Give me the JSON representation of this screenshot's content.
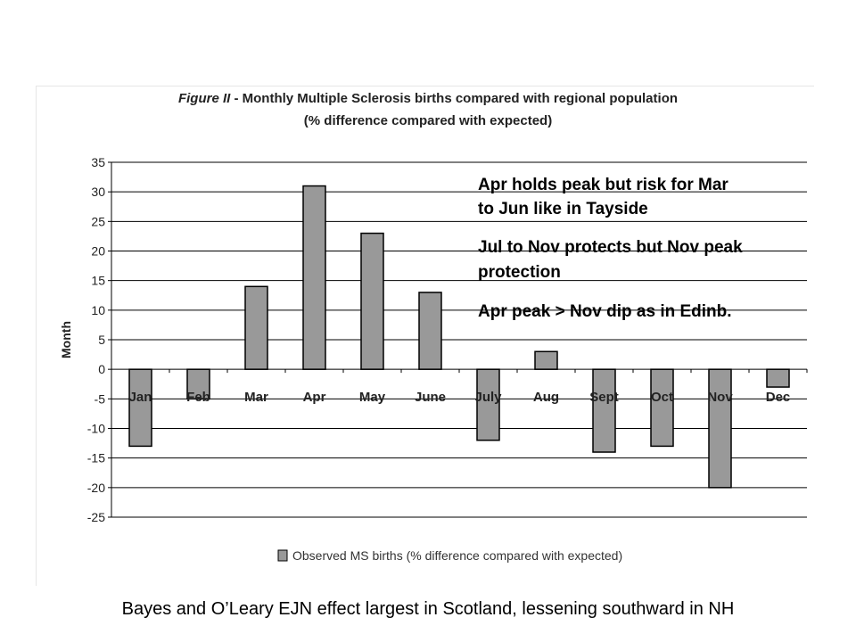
{
  "chart_data": {
    "type": "bar",
    "title_prefix": "Figure II",
    "title": " - Monthly Multiple Sclerosis births compared with regional population",
    "subtitle": "(% difference compared with expected)",
    "ylabel": "Month",
    "xlabel": "",
    "ylim": [
      -25,
      35
    ],
    "yticks": [
      35,
      30,
      25,
      20,
      15,
      10,
      5,
      0,
      -5,
      -10,
      -15,
      -20,
      -25
    ],
    "grid": true,
    "categories": [
      "Jan",
      "Feb",
      "Mar",
      "Apr",
      "May",
      "June",
      "July",
      "Aug",
      "Sept",
      "Oct",
      "Nov",
      "Dec"
    ],
    "series": [
      {
        "name": "Observed MS births (% difference compared with expected)",
        "values": [
          -13,
          -5,
          14,
          31,
          23,
          13,
          -12,
          3,
          -14,
          -13,
          -20,
          -3
        ]
      }
    ],
    "legend": "bottom",
    "bar_color": "#999999",
    "annotations": [
      "Apr holds peak but risk  for Mar",
      "to Jun like in Tayside",
      "Jul to Nov protects but Nov peak",
      "protection",
      "Apr peak > Nov dip as in Edinb."
    ]
  },
  "caption": "Bayes and O’Leary EJN effect  largest in Scotland, lessening southward in NH"
}
